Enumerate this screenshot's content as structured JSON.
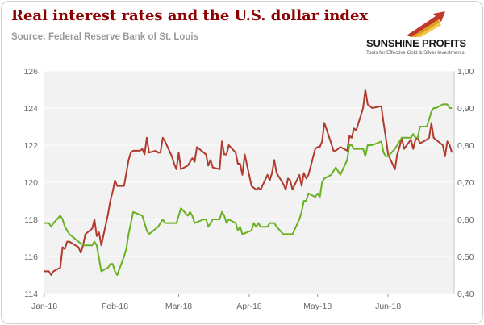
{
  "title": "Real interest rates and the U.S. dollar index",
  "subtitle": "Source: Federal Reserve Bank of St. Louis",
  "logo": {
    "name": "SUNSHINE PROFITS",
    "tagline": "Tools for Effective Gold & Silver Investments"
  },
  "colors": {
    "title": "#8b0000",
    "dollar_index": "#b03a2e",
    "real_rate": "#6ab023",
    "plot_bg": "#f2f2f2"
  },
  "chart_data": {
    "type": "line",
    "title": "Real interest rates and the U.S. dollar index",
    "x_domain": [
      "2018-01-01",
      "2018-06-30"
    ],
    "x_ticks": [
      {
        "label": "Jan-18",
        "date": "2018-01-01"
      },
      {
        "label": "Feb-18",
        "date": "2018-02-01"
      },
      {
        "label": "Mar-18",
        "date": "2018-03-01"
      },
      {
        "label": "Apr-18",
        "date": "2018-04-01"
      },
      {
        "label": "May-18",
        "date": "2018-05-01"
      },
      {
        "label": "Jun-18",
        "date": "2018-06-01"
      }
    ],
    "y_left": {
      "min": 114,
      "max": 126,
      "ticks": [
        "114",
        "116",
        "118",
        "120",
        "122",
        "124",
        "126"
      ]
    },
    "y_right": {
      "min": 0.4,
      "max": 1.0,
      "ticks": [
        "0,40",
        "0,50",
        "0,60",
        "0,70",
        "0,80",
        "0,90",
        "1,00"
      ]
    },
    "grid": "horizontal",
    "series": [
      {
        "axis": "left",
        "color": "#b03a2e",
        "points": [
          [
            "2018-01-01",
            115.2
          ],
          [
            "2018-01-03",
            115.2
          ],
          [
            "2018-01-04",
            115.0
          ],
          [
            "2018-01-05",
            115.2
          ],
          [
            "2018-01-08",
            115.4
          ],
          [
            "2018-01-09",
            116.5
          ],
          [
            "2018-01-10",
            116.4
          ],
          [
            "2018-01-11",
            116.8
          ],
          [
            "2018-01-12",
            116.8
          ],
          [
            "2018-01-16",
            116.5
          ],
          [
            "2018-01-17",
            116.2
          ],
          [
            "2018-01-18",
            116.6
          ],
          [
            "2018-01-19",
            117.2
          ],
          [
            "2018-01-22",
            117.5
          ],
          [
            "2018-01-23",
            118.0
          ],
          [
            "2018-01-24",
            117.1
          ],
          [
            "2018-01-25",
            117.3
          ],
          [
            "2018-01-26",
            116.6
          ],
          [
            "2018-01-29",
            118.3
          ],
          [
            "2018-01-30",
            119.0
          ],
          [
            "2018-01-31",
            119.5
          ],
          [
            "2018-02-01",
            120.1
          ],
          [
            "2018-02-02",
            119.8
          ],
          [
            "2018-02-05",
            119.8
          ],
          [
            "2018-02-06",
            120.5
          ],
          [
            "2018-02-07",
            121.2
          ],
          [
            "2018-02-08",
            121.6
          ],
          [
            "2018-02-09",
            121.7
          ],
          [
            "2018-02-12",
            121.7
          ],
          [
            "2018-02-13",
            121.8
          ],
          [
            "2018-02-14",
            121.5
          ],
          [
            "2018-02-15",
            122.4
          ],
          [
            "2018-02-16",
            121.6
          ],
          [
            "2018-02-19",
            121.7
          ],
          [
            "2018-02-20",
            121.6
          ],
          [
            "2018-02-21",
            121.6
          ],
          [
            "2018-02-22",
            122.4
          ],
          [
            "2018-02-23",
            122.2
          ],
          [
            "2018-02-26",
            121.4
          ],
          [
            "2018-02-27",
            121.0
          ],
          [
            "2018-02-28",
            120.7
          ],
          [
            "2018-03-01",
            121.6
          ],
          [
            "2018-03-02",
            120.7
          ],
          [
            "2018-03-05",
            120.9
          ],
          [
            "2018-03-06",
            121.1
          ],
          [
            "2018-03-07",
            121.3
          ],
          [
            "2018-03-08",
            121.1
          ],
          [
            "2018-03-09",
            121.9
          ],
          [
            "2018-03-12",
            121.6
          ],
          [
            "2018-03-13",
            121.5
          ],
          [
            "2018-03-14",
            120.9
          ],
          [
            "2018-03-15",
            121.2
          ],
          [
            "2018-03-16",
            120.8
          ],
          [
            "2018-03-19",
            120.7
          ],
          [
            "2018-03-20",
            122.2
          ],
          [
            "2018-03-21",
            121.5
          ],
          [
            "2018-03-22",
            121.5
          ],
          [
            "2018-03-23",
            122.0
          ],
          [
            "2018-03-26",
            121.6
          ],
          [
            "2018-03-27",
            121.0
          ],
          [
            "2018-03-28",
            121.0
          ],
          [
            "2018-03-29",
            120.4
          ],
          [
            "2018-03-30",
            121.5
          ],
          [
            "2018-04-02",
            119.8
          ],
          [
            "2018-04-03",
            119.7
          ],
          [
            "2018-04-04",
            119.6
          ],
          [
            "2018-04-05",
            119.7
          ],
          [
            "2018-04-06",
            119.6
          ],
          [
            "2018-04-09",
            120.4
          ],
          [
            "2018-04-10",
            120.1
          ],
          [
            "2018-04-11",
            120.5
          ],
          [
            "2018-04-12",
            121.2
          ],
          [
            "2018-04-13",
            120.5
          ],
          [
            "2018-04-16",
            119.9
          ],
          [
            "2018-04-17",
            119.6
          ],
          [
            "2018-04-18",
            120.2
          ],
          [
            "2018-04-19",
            120.1
          ],
          [
            "2018-04-20",
            119.6
          ],
          [
            "2018-04-23",
            120.4
          ],
          [
            "2018-04-24",
            119.8
          ],
          [
            "2018-04-25",
            120.5
          ],
          [
            "2018-04-26",
            120.2
          ],
          [
            "2018-04-27",
            120.4
          ],
          [
            "2018-04-30",
            121.8
          ],
          [
            "2018-05-01",
            121.9
          ],
          [
            "2018-05-02",
            121.9
          ],
          [
            "2018-05-03",
            122.2
          ],
          [
            "2018-05-04",
            123.2
          ],
          [
            "2018-05-07",
            122.1
          ],
          [
            "2018-05-08",
            121.7
          ],
          [
            "2018-05-09",
            121.7
          ],
          [
            "2018-05-10",
            121.8
          ],
          [
            "2018-05-11",
            121.9
          ],
          [
            "2018-05-14",
            121.7
          ],
          [
            "2018-05-15",
            122.5
          ],
          [
            "2018-05-16",
            122.4
          ],
          [
            "2018-05-17",
            122.9
          ],
          [
            "2018-05-18",
            122.8
          ],
          [
            "2018-05-21",
            124.0
          ],
          [
            "2018-05-22",
            125.0
          ],
          [
            "2018-05-23",
            124.2
          ],
          [
            "2018-05-24",
            124.1
          ],
          [
            "2018-05-25",
            124.0
          ],
          [
            "2018-05-29",
            124.1
          ],
          [
            "2018-05-30",
            123.2
          ],
          [
            "2018-05-31",
            122.4
          ],
          [
            "2018-06-01",
            121.5
          ],
          [
            "2018-06-04",
            120.7
          ],
          [
            "2018-06-05",
            121.5
          ],
          [
            "2018-06-06",
            121.9
          ],
          [
            "2018-06-07",
            122.4
          ],
          [
            "2018-06-08",
            121.8
          ],
          [
            "2018-06-11",
            122.3
          ],
          [
            "2018-06-12",
            121.8
          ],
          [
            "2018-06-13",
            122.3
          ],
          [
            "2018-06-14",
            122.4
          ],
          [
            "2018-06-15",
            122.1
          ],
          [
            "2018-06-18",
            122.3
          ],
          [
            "2018-06-19",
            122.4
          ],
          [
            "2018-06-20",
            123.2
          ],
          [
            "2018-06-21",
            122.4
          ],
          [
            "2018-06-22",
            122.3
          ],
          [
            "2018-06-25",
            122.0
          ],
          [
            "2018-06-26",
            121.4
          ],
          [
            "2018-06-27",
            122.2
          ],
          [
            "2018-06-28",
            122.0
          ],
          [
            "2018-06-29",
            121.6
          ]
        ]
      },
      {
        "axis": "right",
        "color": "#6ab023",
        "points": [
          [
            "2018-01-01",
            0.59
          ],
          [
            "2018-01-03",
            0.59
          ],
          [
            "2018-01-04",
            0.58
          ],
          [
            "2018-01-05",
            0.59
          ],
          [
            "2018-01-08",
            0.61
          ],
          [
            "2018-01-09",
            0.6
          ],
          [
            "2018-01-10",
            0.58
          ],
          [
            "2018-01-12",
            0.56
          ],
          [
            "2018-01-16",
            0.54
          ],
          [
            "2018-01-18",
            0.53
          ],
          [
            "2018-01-19",
            0.53
          ],
          [
            "2018-01-22",
            0.53
          ],
          [
            "2018-01-23",
            0.54
          ],
          [
            "2018-01-24",
            0.53
          ],
          [
            "2018-01-26",
            0.46
          ],
          [
            "2018-01-29",
            0.47
          ],
          [
            "2018-01-30",
            0.48
          ],
          [
            "2018-01-31",
            0.48
          ],
          [
            "2018-02-01",
            0.46
          ],
          [
            "2018-02-02",
            0.45
          ],
          [
            "2018-02-05",
            0.5
          ],
          [
            "2018-02-06",
            0.52
          ],
          [
            "2018-02-07",
            0.56
          ],
          [
            "2018-02-09",
            0.62
          ],
          [
            "2018-02-13",
            0.61
          ],
          [
            "2018-02-15",
            0.57
          ],
          [
            "2018-02-16",
            0.56
          ],
          [
            "2018-02-20",
            0.58
          ],
          [
            "2018-02-21",
            0.59
          ],
          [
            "2018-02-22",
            0.6
          ],
          [
            "2018-02-23",
            0.59
          ],
          [
            "2018-02-26",
            0.59
          ],
          [
            "2018-02-28",
            0.59
          ],
          [
            "2018-03-01",
            0.61
          ],
          [
            "2018-03-02",
            0.63
          ],
          [
            "2018-03-05",
            0.61
          ],
          [
            "2018-03-06",
            0.62
          ],
          [
            "2018-03-07",
            0.61
          ],
          [
            "2018-03-08",
            0.59
          ],
          [
            "2018-03-12",
            0.6
          ],
          [
            "2018-03-13",
            0.6
          ],
          [
            "2018-03-14",
            0.58
          ],
          [
            "2018-03-16",
            0.6
          ],
          [
            "2018-03-19",
            0.6
          ],
          [
            "2018-03-20",
            0.62
          ],
          [
            "2018-03-21",
            0.61
          ],
          [
            "2018-03-22",
            0.59
          ],
          [
            "2018-03-23",
            0.6
          ],
          [
            "2018-03-26",
            0.59
          ],
          [
            "2018-03-27",
            0.57
          ],
          [
            "2018-03-28",
            0.58
          ],
          [
            "2018-03-29",
            0.56
          ],
          [
            "2018-04-02",
            0.57
          ],
          [
            "2018-04-03",
            0.59
          ],
          [
            "2018-04-04",
            0.58
          ],
          [
            "2018-04-05",
            0.59
          ],
          [
            "2018-04-06",
            0.58
          ],
          [
            "2018-04-09",
            0.58
          ],
          [
            "2018-04-10",
            0.59
          ],
          [
            "2018-04-12",
            0.59
          ],
          [
            "2018-04-13",
            0.58
          ],
          [
            "2018-04-16",
            0.56
          ],
          [
            "2018-04-17",
            0.56
          ],
          [
            "2018-04-19",
            0.56
          ],
          [
            "2018-04-20",
            0.56
          ],
          [
            "2018-04-23",
            0.6
          ],
          [
            "2018-04-24",
            0.62
          ],
          [
            "2018-04-25",
            0.65
          ],
          [
            "2018-04-26",
            0.65
          ],
          [
            "2018-04-27",
            0.67
          ],
          [
            "2018-04-30",
            0.66
          ],
          [
            "2018-05-01",
            0.67
          ],
          [
            "2018-05-02",
            0.66
          ],
          [
            "2018-05-03",
            0.7
          ],
          [
            "2018-05-04",
            0.71
          ],
          [
            "2018-05-07",
            0.72
          ],
          [
            "2018-05-08",
            0.73
          ],
          [
            "2018-05-09",
            0.74
          ],
          [
            "2018-05-10",
            0.73
          ],
          [
            "2018-05-11",
            0.72
          ],
          [
            "2018-05-14",
            0.76
          ],
          [
            "2018-05-15",
            0.8
          ],
          [
            "2018-05-16",
            0.8
          ],
          [
            "2018-05-17",
            0.79
          ],
          [
            "2018-05-18",
            0.79
          ],
          [
            "2018-05-21",
            0.79
          ],
          [
            "2018-05-22",
            0.77
          ],
          [
            "2018-05-23",
            0.8
          ],
          [
            "2018-05-24",
            0.8
          ],
          [
            "2018-05-25",
            0.8
          ],
          [
            "2018-05-29",
            0.81
          ],
          [
            "2018-05-30",
            0.78
          ],
          [
            "2018-05-31",
            0.77
          ],
          [
            "2018-06-01",
            0.77
          ],
          [
            "2018-06-04",
            0.79
          ],
          [
            "2018-06-05",
            0.8
          ],
          [
            "2018-06-06",
            0.81
          ],
          [
            "2018-06-07",
            0.82
          ],
          [
            "2018-06-08",
            0.82
          ],
          [
            "2018-06-11",
            0.82
          ],
          [
            "2018-06-12",
            0.83
          ],
          [
            "2018-06-13",
            0.82
          ],
          [
            "2018-06-14",
            0.82
          ],
          [
            "2018-06-15",
            0.85
          ],
          [
            "2018-06-18",
            0.85
          ],
          [
            "2018-06-19",
            0.87
          ],
          [
            "2018-06-20",
            0.89
          ],
          [
            "2018-06-21",
            0.9
          ],
          [
            "2018-06-22",
            0.9
          ],
          [
            "2018-06-25",
            0.91
          ],
          [
            "2018-06-26",
            0.91
          ],
          [
            "2018-06-27",
            0.91
          ],
          [
            "2018-06-28",
            0.9
          ],
          [
            "2018-06-29",
            0.9
          ]
        ]
      }
    ]
  }
}
